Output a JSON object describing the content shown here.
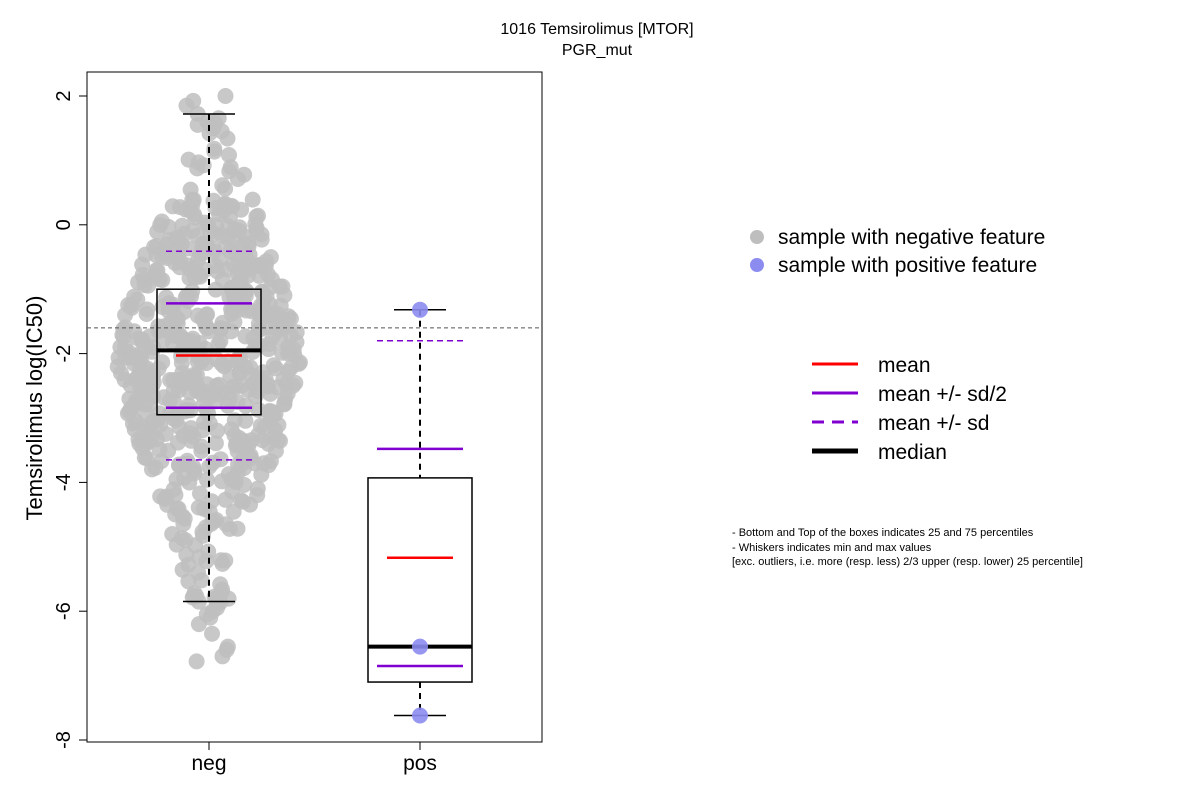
{
  "chart_data": {
    "type": "box",
    "title": "1016 Temsirolimus [MTOR]",
    "subtitle": "PGR_mut",
    "xlabel": "",
    "ylabel": "Temsirolimus log(IC50)",
    "ylim": [
      -8,
      2
    ],
    "yticks": [
      -8,
      -6,
      -4,
      -2,
      0,
      2
    ],
    "categories": [
      "neg",
      "pos"
    ],
    "reference_line": -1.6,
    "groups": [
      {
        "name": "neg",
        "color": "#bebebe",
        "whisker_low": -5.85,
        "q1": -2.95,
        "median": -1.95,
        "q3": -1.0,
        "whisker_high": 1.72,
        "mean": -2.03,
        "mean_minus_half_sd": -2.84,
        "mean_plus_half_sd": -1.22,
        "mean_minus_sd": -3.65,
        "mean_plus_sd": -0.41,
        "n_points_approx": 600,
        "outlier_points": [
          -6.0,
          -6.05,
          -6.1,
          -6.2,
          -6.35,
          -6.55,
          -6.6,
          -6.7,
          -6.78,
          -5.95,
          -5.85
        ]
      },
      {
        "name": "pos",
        "color": "#8c8cf0",
        "whisker_low": -7.62,
        "q1": -7.1,
        "median": -6.55,
        "q3": -3.93,
        "whisker_high": -1.32,
        "mean": -5.17,
        "mean_minus_half_sd": -6.85,
        "mean_plus_half_sd": -3.48,
        "mean_minus_sd": null,
        "mean_plus_sd": -1.8,
        "points": [
          -1.32,
          -6.55,
          -7.62
        ]
      }
    ],
    "legend_points": [
      {
        "label": "sample with negative feature",
        "color": "#bebebe"
      },
      {
        "label": "sample with positive feature",
        "color": "#8c8cf0"
      }
    ],
    "legend_lines": [
      {
        "label": "mean",
        "color": "#ff0000",
        "style": "solid"
      },
      {
        "label": "mean +/- sd/2",
        "color": "#8000d0",
        "style": "solid"
      },
      {
        "label": "mean +/- sd",
        "color": "#8000d0",
        "style": "dashed"
      },
      {
        "label": "median",
        "color": "#000000",
        "style": "thick"
      }
    ],
    "notes": [
      "- Bottom and Top of the boxes indicates 25 and 75 percentiles",
      "- Whiskers indicates min and max values",
      "[exc. outliers, i.e. more (resp. less) 2/3 upper (resp. lower) 25 percentile]"
    ]
  }
}
